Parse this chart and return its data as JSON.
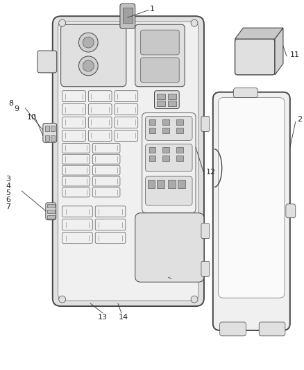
{
  "background_color": "#ffffff",
  "fig_width": 4.38,
  "fig_height": 5.33,
  "dpi": 100,
  "line_color": "#444444",
  "fill_light": "#f0f0f0",
  "fill_mid": "#e0e0e0",
  "fill_dark": "#c8c8c8",
  "lw_outer": 1.4,
  "lw_inner": 0.7,
  "lw_thin": 0.5,
  "label_fs": 8,
  "callout_lw": 0.6,
  "callout_color": "#333333"
}
